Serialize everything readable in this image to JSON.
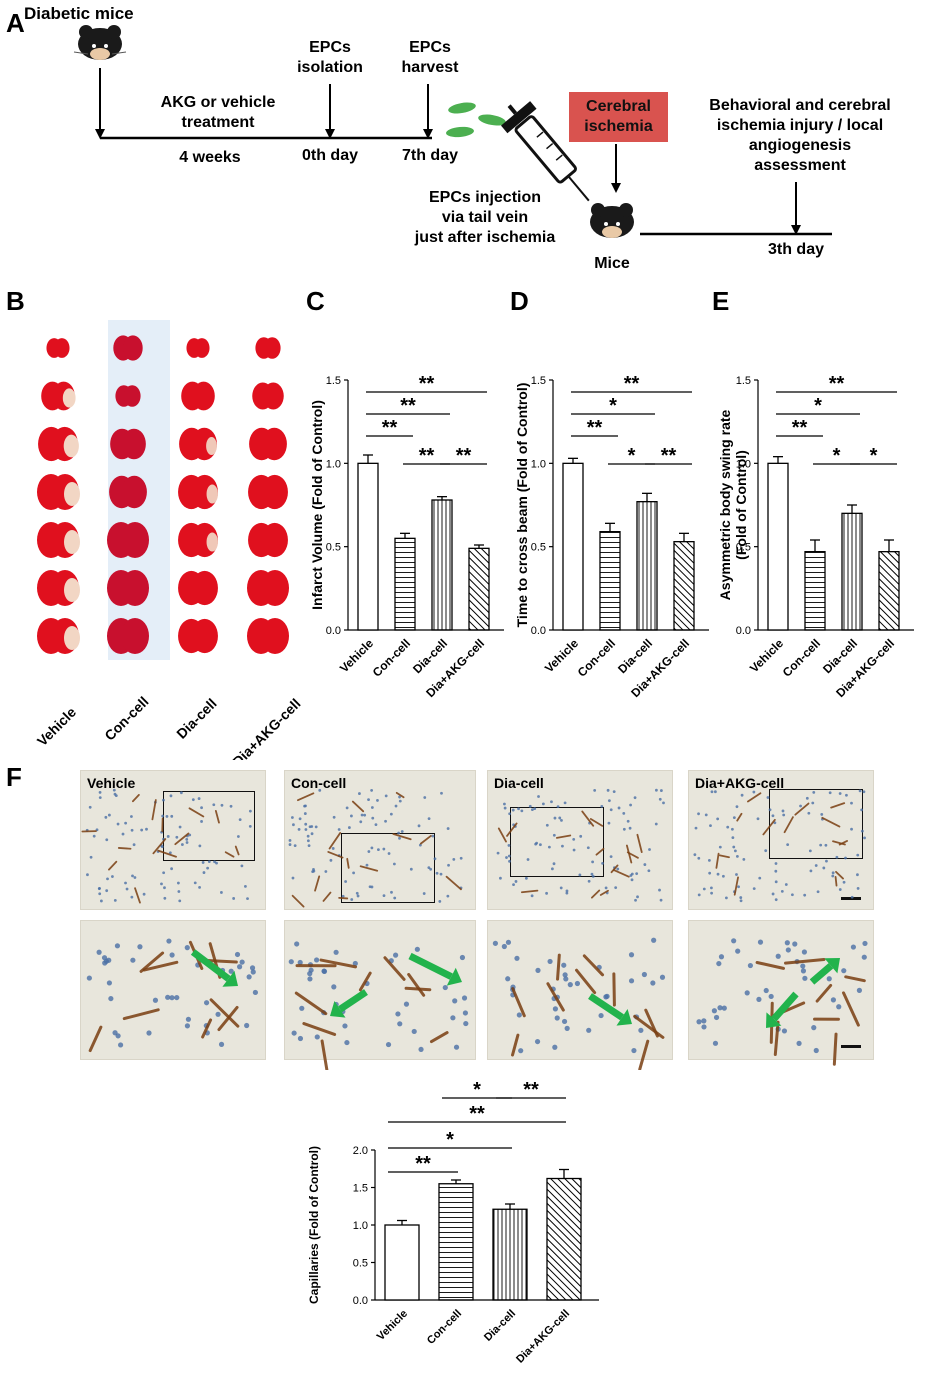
{
  "panels": {
    "A": {
      "letter": "A",
      "diabetic_mice": "Diabetic mice",
      "treatment": [
        "AKG or vehicle",
        "treatment"
      ],
      "duration": "4 weeks",
      "isolation": [
        "EPCs",
        "isolation"
      ],
      "day0": "0th day",
      "harvest": [
        "EPCs",
        "harvest"
      ],
      "day7": "7th day",
      "cerebral_ischemia": [
        "Cerebral",
        "ischemia"
      ],
      "injection": [
        "EPCs injection",
        "via tail vein",
        "just after ischemia"
      ],
      "mice": "Mice",
      "assessment": [
        "Behavioral and cerebral",
        "ischemia injury / local",
        "angiogenesis",
        "assessment"
      ],
      "day3": "3th day",
      "colors": {
        "ischemia_box": "#d9534f",
        "cells": "#4caf50"
      }
    },
    "B": {
      "letter": "B",
      "groups": [
        "Vehicle",
        "Con-cell",
        "Dia-cell",
        "Dia+AKG-cell"
      ]
    },
    "C": {
      "letter": "C"
    },
    "D": {
      "letter": "D"
    },
    "E": {
      "letter": "E"
    },
    "F": {
      "letter": "F",
      "micro_labels": [
        "Vehicle",
        "Con-cell",
        "Dia-cell",
        "Dia+AKG-cell"
      ],
      "arrow_color": "#22b34c"
    }
  },
  "chart_data": [
    {
      "id": "C",
      "type": "bar",
      "categories": [
        "Vehicle",
        "Con-cell",
        "Dia-cell",
        "Dia+AKG-cell"
      ],
      "values": [
        1.0,
        0.55,
        0.78,
        0.49
      ],
      "errors": [
        0.05,
        0.03,
        0.02,
        0.02
      ],
      "ylabel": "Infarct  Volume (Fold of Control)",
      "ylim": [
        0,
        1.5
      ],
      "yticks": [
        "0.0",
        "0.5",
        "1.0",
        "1.5"
      ],
      "patterns": [
        "none",
        "horizontal",
        "vertical",
        "diagonal"
      ],
      "significance": [
        {
          "from": 0,
          "to": 3,
          "label": "**"
        },
        {
          "from": 0,
          "to": 2,
          "label": "**"
        },
        {
          "from": 0,
          "to": 1,
          "label": "**"
        },
        {
          "from": 1,
          "to": 2,
          "label": "**"
        },
        {
          "from": 2,
          "to": 3,
          "label": "**"
        }
      ]
    },
    {
      "id": "D",
      "type": "bar",
      "categories": [
        "Vehicle",
        "Con-cell",
        "Dia-cell",
        "Dia+AKG-cell"
      ],
      "values": [
        1.0,
        0.59,
        0.77,
        0.53
      ],
      "errors": [
        0.03,
        0.05,
        0.05,
        0.05
      ],
      "ylabel": "Time to cross beam (Fold of Control)",
      "ylim": [
        0,
        1.5
      ],
      "yticks": [
        "0.0",
        "0.5",
        "1.0",
        "1.5"
      ],
      "patterns": [
        "none",
        "horizontal",
        "vertical",
        "diagonal"
      ],
      "significance": [
        {
          "from": 0,
          "to": 3,
          "label": "**"
        },
        {
          "from": 0,
          "to": 2,
          "label": "*"
        },
        {
          "from": 0,
          "to": 1,
          "label": "**"
        },
        {
          "from": 1,
          "to": 2,
          "label": "*"
        },
        {
          "from": 2,
          "to": 3,
          "label": "**"
        }
      ]
    },
    {
      "id": "E",
      "type": "bar",
      "categories": [
        "Vehicle",
        "Con-cell",
        "Dia-cell",
        "Dia+AKG-cell"
      ],
      "values": [
        1.0,
        0.47,
        0.7,
        0.47
      ],
      "errors": [
        0.04,
        0.07,
        0.05,
        0.07
      ],
      "ylabel": [
        "Asymmetric body swing rate",
        "(Fold of Control)"
      ],
      "ylim": [
        0,
        1.5
      ],
      "yticks": [
        "0.0",
        "0.5",
        "1.0",
        "1.5"
      ],
      "patterns": [
        "none",
        "horizontal",
        "vertical",
        "diagonal"
      ],
      "significance": [
        {
          "from": 0,
          "to": 3,
          "label": "**"
        },
        {
          "from": 0,
          "to": 2,
          "label": "*"
        },
        {
          "from": 0,
          "to": 1,
          "label": "**"
        },
        {
          "from": 1,
          "to": 2,
          "label": "*"
        },
        {
          "from": 2,
          "to": 3,
          "label": "*"
        }
      ]
    },
    {
      "id": "F",
      "type": "bar",
      "categories": [
        "Vehicle",
        "Con-cell",
        "Dia-cell",
        "Dia+AKG-cell"
      ],
      "values": [
        1.0,
        1.55,
        1.21,
        1.62
      ],
      "errors": [
        0.06,
        0.05,
        0.07,
        0.12
      ],
      "ylabel": "Capillaries (Fold of Control)",
      "ylim": [
        0,
        2.0
      ],
      "yticks": [
        "0.0",
        "0.5",
        "1.0",
        "1.5",
        "2.0"
      ],
      "patterns": [
        "none",
        "horizontal",
        "vertical",
        "diagonal"
      ],
      "significance": [
        {
          "from": 1,
          "to": 2,
          "label": "*"
        },
        {
          "from": 2,
          "to": 3,
          "label": "**"
        },
        {
          "from": 0,
          "to": 3,
          "label": "**"
        },
        {
          "from": 0,
          "to": 2,
          "label": "*"
        },
        {
          "from": 0,
          "to": 1,
          "label": "**"
        }
      ]
    }
  ]
}
